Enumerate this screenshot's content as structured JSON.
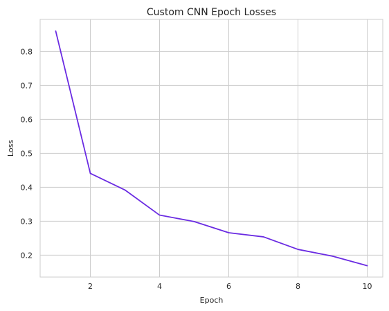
{
  "chart_data": {
    "type": "line",
    "title": "Custom CNN Epoch Losses",
    "xlabel": "Epoch",
    "ylabel": "Loss",
    "xlim": [
      0.55,
      10.45
    ],
    "ylim": [
      0.1355,
      0.8945
    ],
    "xticks": [
      2,
      4,
      6,
      8,
      10
    ],
    "yticks": [
      0.2,
      0.3,
      0.4,
      0.5,
      0.6,
      0.7,
      0.8
    ],
    "ytick_labels": [
      "0.2",
      "0.3",
      "0.4",
      "0.5",
      "0.6",
      "0.7",
      "0.8"
    ],
    "grid": true,
    "series": [
      {
        "color": "#6a2be2",
        "x": [
          1,
          2,
          3,
          4,
          5,
          6,
          7,
          8,
          9,
          10
        ],
        "values": [
          0.86,
          0.441,
          0.392,
          0.318,
          0.299,
          0.266,
          0.254,
          0.217,
          0.197,
          0.169
        ]
      }
    ]
  }
}
